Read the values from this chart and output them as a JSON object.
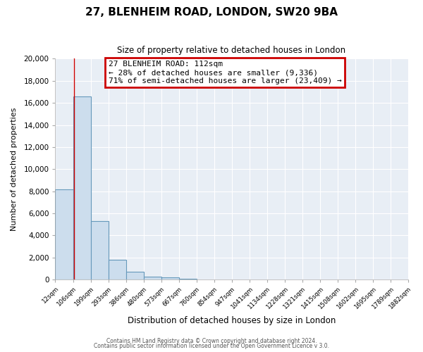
{
  "title": "27, BLENHEIM ROAD, LONDON, SW20 9BA",
  "subtitle": "Size of property relative to detached houses in London",
  "xlabel": "Distribution of detached houses by size in London",
  "ylabel": "Number of detached properties",
  "bar_color": "#ccdded",
  "bar_edge_color": "#6699bb",
  "bar_values": [
    8200,
    16600,
    5300,
    1800,
    700,
    300,
    200,
    100,
    0,
    0,
    0,
    0,
    0,
    0,
    0,
    0,
    0,
    0,
    0,
    0
  ],
  "bin_edges": [
    12,
    106,
    199,
    293,
    386,
    480,
    573,
    667,
    760,
    854,
    947,
    1041,
    1134,
    1228,
    1321,
    1415,
    1508,
    1602,
    1695,
    1789,
    1882
  ],
  "all_tick_labels": [
    "12sqm",
    "106sqm",
    "199sqm",
    "293sqm",
    "386sqm",
    "480sqm",
    "573sqm",
    "667sqm",
    "760sqm",
    "854sqm",
    "947sqm",
    "1041sqm",
    "1134sqm",
    "1228sqm",
    "1321sqm",
    "1415sqm",
    "1508sqm",
    "1602sqm",
    "1695sqm",
    "1789sqm",
    "1882sqm"
  ],
  "ylim": [
    0,
    20000
  ],
  "yticks": [
    0,
    2000,
    4000,
    6000,
    8000,
    10000,
    12000,
    14000,
    16000,
    18000,
    20000
  ],
  "red_line_x": 112,
  "annotation_title": "27 BLENHEIM ROAD: 112sqm",
  "annotation_line1": "← 28% of detached houses are smaller (9,336)",
  "annotation_line2": "71% of semi-detached houses are larger (23,409) →",
  "footer1": "Contains HM Land Registry data © Crown copyright and database right 2024.",
  "footer2": "Contains public sector information licensed under the Open Government Licence v 3.0.",
  "background_color": "#ffffff",
  "plot_bg_color": "#e8eef5",
  "grid_color": "#ffffff",
  "annotation_box_color": "#ffffff",
  "annotation_box_edge": "#cc0000"
}
